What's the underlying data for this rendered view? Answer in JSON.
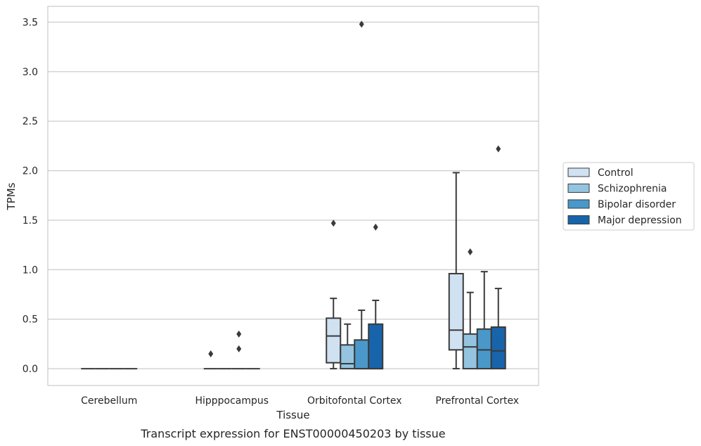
{
  "caption": "Transcript expression for ENST00000450203 by tissue",
  "chart_data": {
    "type": "box",
    "xlabel": "Tissue",
    "ylabel": "TPMs",
    "ylim": [
      -0.17,
      3.66
    ],
    "yticks": [
      "0.0",
      "0.5",
      "1.0",
      "1.5",
      "2.0",
      "2.5",
      "3.0",
      "3.5"
    ],
    "grid": "horizontal",
    "legend_position": "right",
    "categories": [
      "Cerebellum",
      "Hipppocampus",
      "Orbitofontal Cortex",
      "Prefrontal Cortex"
    ],
    "series": [
      {
        "name": "Control",
        "color": "#d0e1f2",
        "boxes": [
          {
            "min": 0,
            "q1": 0,
            "median": 0,
            "q3": 0,
            "max": 0,
            "outliers": []
          },
          {
            "min": 0,
            "q1": 0,
            "median": 0,
            "q3": 0,
            "max": 0,
            "outliers": [
              0.15
            ]
          },
          {
            "min": 0,
            "q1": 0.06,
            "median": 0.33,
            "q3": 0.51,
            "max": 0.71,
            "outliers": [
              1.47
            ]
          },
          {
            "min": 0,
            "q1": 0.19,
            "median": 0.39,
            "q3": 0.96,
            "max": 1.98,
            "outliers": []
          }
        ]
      },
      {
        "name": "Schizophrenia",
        "color": "#94c4df",
        "boxes": [
          {
            "min": 0,
            "q1": 0,
            "median": 0,
            "q3": 0,
            "max": 0,
            "outliers": []
          },
          {
            "min": 0,
            "q1": 0,
            "median": 0,
            "q3": 0,
            "max": 0,
            "outliers": []
          },
          {
            "min": 0,
            "q1": 0,
            "median": 0.05,
            "q3": 0.24,
            "max": 0.45,
            "outliers": []
          },
          {
            "min": 0,
            "q1": 0,
            "median": 0.22,
            "q3": 0.35,
            "max": 0.77,
            "outliers": [
              1.18
            ]
          }
        ]
      },
      {
        "name": "Bipolar disorder",
        "color": "#4a98c9",
        "boxes": [
          {
            "min": 0,
            "q1": 0,
            "median": 0,
            "q3": 0,
            "max": 0,
            "outliers": []
          },
          {
            "min": 0,
            "q1": 0,
            "median": 0,
            "q3": 0,
            "max": 0,
            "outliers": [
              0.35,
              0.2
            ]
          },
          {
            "min": 0,
            "q1": 0,
            "median": 0,
            "q3": 0.29,
            "max": 0.59,
            "outliers": [
              3.48
            ]
          },
          {
            "min": 0,
            "q1": 0,
            "median": 0.19,
            "q3": 0.4,
            "max": 0.98,
            "outliers": []
          }
        ]
      },
      {
        "name": "Major depression",
        "color": "#1764ab",
        "boxes": [
          {
            "min": 0,
            "q1": 0,
            "median": 0,
            "q3": 0,
            "max": 0,
            "outliers": []
          },
          {
            "min": 0,
            "q1": 0,
            "median": 0,
            "q3": 0,
            "max": 0,
            "outliers": []
          },
          {
            "min": 0,
            "q1": 0,
            "median": 0,
            "q3": 0.45,
            "max": 0.69,
            "outliers": [
              1.43
            ]
          },
          {
            "min": 0,
            "q1": 0,
            "median": 0.18,
            "q3": 0.42,
            "max": 0.81,
            "outliers": [
              2.22
            ]
          }
        ]
      }
    ]
  }
}
